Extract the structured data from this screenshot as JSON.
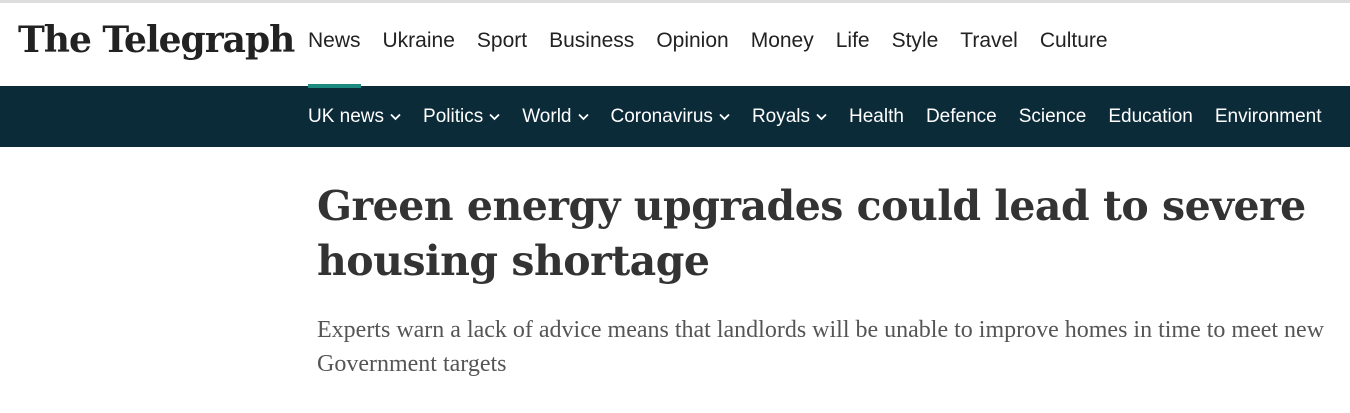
{
  "header": {
    "logo": "The Telegraph",
    "nav": [
      "News",
      "Ukraine",
      "Sport",
      "Business",
      "Opinion",
      "Money",
      "Life",
      "Style",
      "Travel",
      "Culture"
    ],
    "subnav": [
      {
        "label": "UK news",
        "dropdown": true
      },
      {
        "label": "Politics",
        "dropdown": true
      },
      {
        "label": "World",
        "dropdown": true
      },
      {
        "label": "Coronavirus",
        "dropdown": true
      },
      {
        "label": "Royals",
        "dropdown": true
      },
      {
        "label": "Health",
        "dropdown": false
      },
      {
        "label": "Defence",
        "dropdown": false
      },
      {
        "label": "Science",
        "dropdown": false
      },
      {
        "label": "Education",
        "dropdown": false
      },
      {
        "label": "Environment",
        "dropdown": false
      }
    ]
  },
  "article": {
    "headline": "Green energy upgrades could lead to severe housing shortage",
    "standfirst": "Experts warn a lack of advice means that landlords will be unable to improve homes in time to meet new Government targets"
  }
}
